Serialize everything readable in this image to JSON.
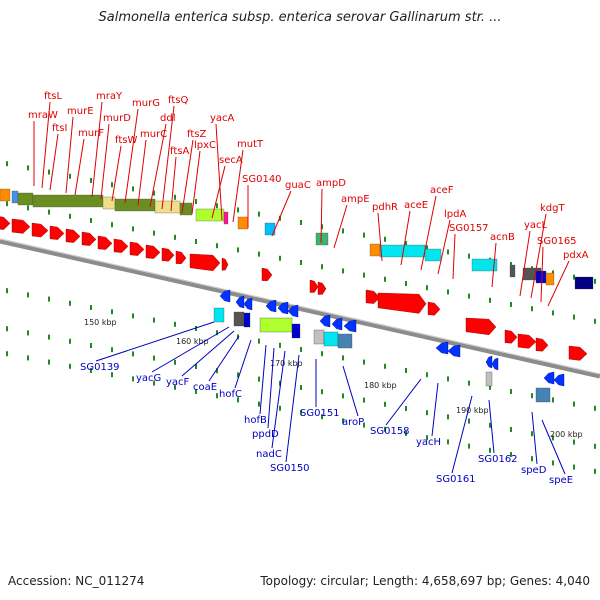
{
  "title": "Salmonella enterica subsp. enterica serovar Gallinarum str. ...",
  "footer": {
    "accession": "Accession: NC_011274",
    "summary": "Topology: circular; Length: 4,658,697 bp; Genes: 4,040"
  },
  "colors": {
    "forward_label": "#e00000",
    "reverse_label": "#0000c0",
    "backbone": "#8c8c8c",
    "tick": "#1f8a1f",
    "forward_arrow": "#ff0000",
    "reverse_arrow": "#0033ff"
  },
  "scale_labels": [
    "150 kbp",
    "160 kbp",
    "170 kbp",
    "180 kbp",
    "190 kbp",
    "200 kbp"
  ],
  "forward_genes": [
    "mraW",
    "ftsL",
    "ftsI",
    "murE",
    "murF",
    "mraY",
    "murD",
    "ftsW",
    "murG",
    "murC",
    "ddl",
    "ftsQ",
    "ftsA",
    "ftsZ",
    "lpxC",
    "secA",
    "yacA",
    "mutT",
    "SG0140",
    "guaC",
    "ampD",
    "ampE",
    "pdhR",
    "aceE",
    "aceF",
    "lpdA",
    "SG0157",
    "acnB",
    "yacL",
    "kdgT",
    "SG0165",
    "pdxA"
  ],
  "reverse_genes": [
    "SG0139",
    "yacG",
    "yacF",
    "coaE",
    "hofC",
    "hofB",
    "ppdD",
    "nadC",
    "SG0150",
    "SG0151",
    "aroP",
    "SG0158",
    "yacH",
    "SG0161",
    "SG0162",
    "speD",
    "speE"
  ]
}
